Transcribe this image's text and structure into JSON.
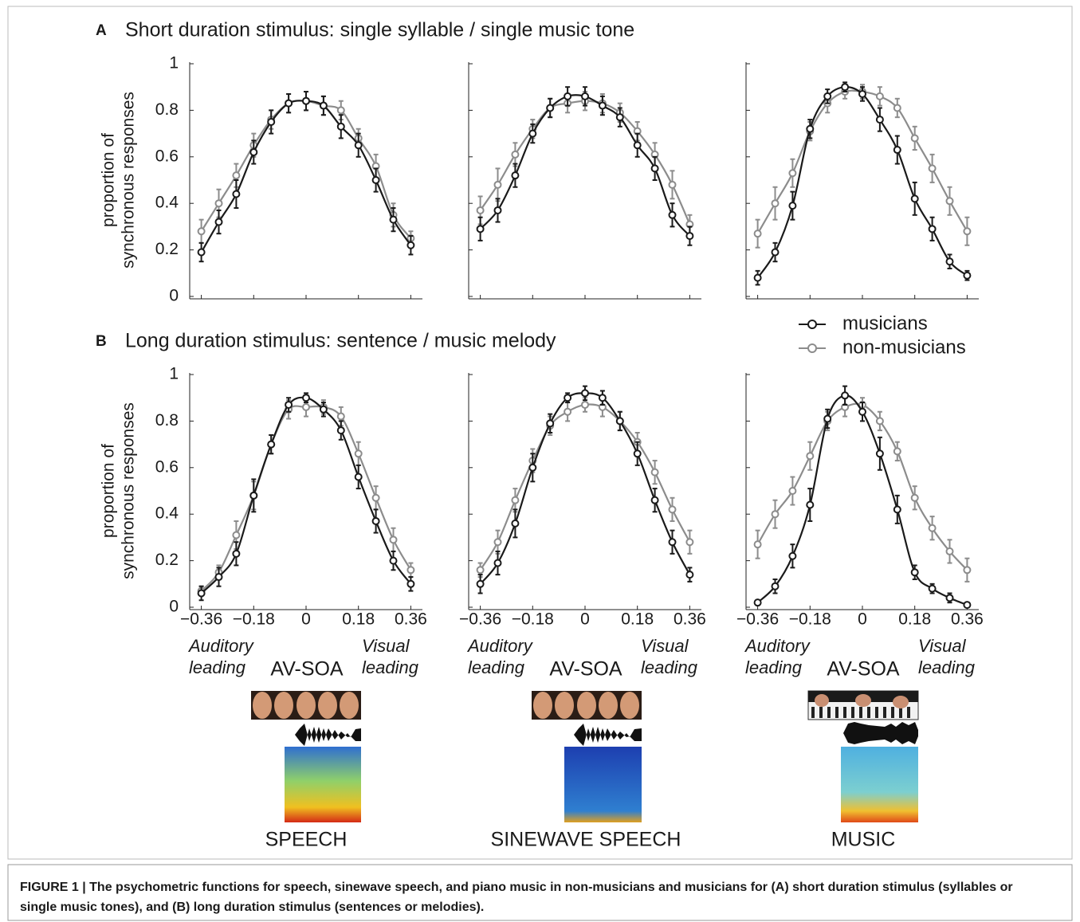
{
  "panels": [
    {
      "letter": "A",
      "title": "Short duration stimulus: single syllable / single music tone"
    },
    {
      "letter": "B",
      "title": "Long duration stimulus: sentence / music melody"
    }
  ],
  "chart_data": [
    {
      "type": "line",
      "ylabel": "proportion of synchronous responses",
      "x": [
        -0.36,
        -0.3,
        -0.24,
        -0.18,
        -0.12,
        -0.06,
        0,
        0.06,
        0.12,
        0.18,
        0.24,
        0.3,
        0.36
      ],
      "xlim": [
        -0.4,
        0.4
      ],
      "ylim": [
        0,
        1
      ],
      "yticks": [
        0,
        0.2,
        0.4,
        0.6,
        0.8,
        1
      ],
      "series": [
        {
          "color": "#8c8c8c",
          "values": [
            0.28,
            0.4,
            0.52,
            0.65,
            0.76,
            0.83,
            0.84,
            0.82,
            0.8,
            0.68,
            0.56,
            0.35,
            0.25
          ],
          "errors": [
            0.05,
            0.06,
            0.05,
            0.05,
            0.04,
            0.04,
            0.04,
            0.04,
            0.04,
            0.04,
            0.05,
            0.05,
            0.03
          ]
        },
        {
          "color": "#1a1a1a",
          "values": [
            0.19,
            0.32,
            0.44,
            0.62,
            0.75,
            0.83,
            0.84,
            0.82,
            0.73,
            0.65,
            0.5,
            0.33,
            0.22
          ],
          "errors": [
            0.04,
            0.05,
            0.06,
            0.05,
            0.05,
            0.04,
            0.04,
            0.04,
            0.05,
            0.05,
            0.05,
            0.05,
            0.04
          ]
        }
      ]
    },
    {
      "type": "line",
      "x": [
        -0.36,
        -0.3,
        -0.24,
        -0.18,
        -0.12,
        -0.06,
        0,
        0.06,
        0.12,
        0.18,
        0.24,
        0.3,
        0.36
      ],
      "xlim": [
        -0.4,
        0.4
      ],
      "ylim": [
        0,
        1
      ],
      "series": [
        {
          "color": "#8c8c8c",
          "values": [
            0.37,
            0.48,
            0.61,
            0.72,
            0.81,
            0.83,
            0.84,
            0.83,
            0.79,
            0.71,
            0.61,
            0.48,
            0.31
          ],
          "errors": [
            0.06,
            0.07,
            0.05,
            0.04,
            0.04,
            0.04,
            0.04,
            0.04,
            0.04,
            0.04,
            0.05,
            0.06,
            0.04
          ]
        },
        {
          "color": "#1a1a1a",
          "values": [
            0.29,
            0.37,
            0.52,
            0.7,
            0.81,
            0.86,
            0.86,
            0.82,
            0.77,
            0.65,
            0.55,
            0.35,
            0.26
          ],
          "errors": [
            0.05,
            0.05,
            0.05,
            0.04,
            0.04,
            0.04,
            0.04,
            0.04,
            0.04,
            0.05,
            0.05,
            0.05,
            0.04
          ]
        }
      ]
    },
    {
      "type": "line",
      "legend": "lower right",
      "x": [
        -0.36,
        -0.3,
        -0.24,
        -0.18,
        -0.12,
        -0.06,
        0,
        0.06,
        0.12,
        0.18,
        0.24,
        0.3,
        0.36
      ],
      "xlim": [
        -0.4,
        0.4
      ],
      "ylim": [
        0,
        1
      ],
      "series": [
        {
          "name": "non-musicians",
          "color": "#8c8c8c",
          "values": [
            0.27,
            0.4,
            0.53,
            0.71,
            0.83,
            0.88,
            0.88,
            0.86,
            0.81,
            0.68,
            0.55,
            0.41,
            0.28
          ],
          "errors": [
            0.06,
            0.07,
            0.06,
            0.04,
            0.04,
            0.03,
            0.03,
            0.04,
            0.04,
            0.05,
            0.06,
            0.06,
            0.06
          ]
        },
        {
          "name": "musicians",
          "color": "#1a1a1a",
          "values": [
            0.08,
            0.19,
            0.39,
            0.72,
            0.86,
            0.9,
            0.87,
            0.76,
            0.63,
            0.42,
            0.29,
            0.15,
            0.09
          ],
          "errors": [
            0.03,
            0.04,
            0.06,
            0.04,
            0.03,
            0.02,
            0.03,
            0.05,
            0.06,
            0.07,
            0.05,
            0.03,
            0.02
          ]
        }
      ]
    },
    {
      "type": "line",
      "ylabel": "proportion of synchronous responses",
      "xlabel": "AV-SOA",
      "annotations": [
        "Auditory leading",
        "Visual leading"
      ],
      "x": [
        -0.36,
        -0.3,
        -0.24,
        -0.18,
        -0.12,
        -0.06,
        0,
        0.06,
        0.12,
        0.18,
        0.24,
        0.3,
        0.36
      ],
      "xlim": [
        -0.4,
        0.4
      ],
      "ylim": [
        0,
        1
      ],
      "yticks": [
        0,
        0.2,
        0.4,
        0.6,
        0.8,
        1
      ],
      "xticks": [
        {
          "value": -0.36,
          "label": "−0.36"
        },
        {
          "value": -0.18,
          "label": "−0.18"
        },
        0,
        0.18,
        0.36
      ],
      "series": [
        {
          "color": "#8c8c8c",
          "values": [
            0.07,
            0.15,
            0.31,
            0.48,
            0.7,
            0.85,
            0.86,
            0.86,
            0.82,
            0.66,
            0.47,
            0.29,
            0.16
          ],
          "errors": [
            0.02,
            0.03,
            0.06,
            0.06,
            0.04,
            0.04,
            0.04,
            0.03,
            0.04,
            0.05,
            0.05,
            0.05,
            0.03
          ]
        },
        {
          "color": "#1a1a1a",
          "values": [
            0.06,
            0.13,
            0.23,
            0.48,
            0.7,
            0.87,
            0.9,
            0.85,
            0.76,
            0.56,
            0.37,
            0.2,
            0.1
          ],
          "errors": [
            0.03,
            0.04,
            0.05,
            0.07,
            0.04,
            0.03,
            0.02,
            0.03,
            0.04,
            0.05,
            0.05,
            0.04,
            0.03
          ]
        }
      ]
    },
    {
      "type": "line",
      "xlabel": "AV-SOA",
      "annotations": [
        "Auditory leading",
        "Visual leading"
      ],
      "x": [
        -0.36,
        -0.3,
        -0.24,
        -0.18,
        -0.12,
        -0.06,
        0,
        0.06,
        0.12,
        0.18,
        0.24,
        0.3,
        0.36
      ],
      "xlim": [
        -0.4,
        0.4
      ],
      "ylim": [
        0,
        1
      ],
      "xticks": [
        {
          "value": -0.36,
          "label": "−0.36"
        },
        {
          "value": -0.18,
          "label": "−0.18"
        },
        0,
        0.18,
        0.36
      ],
      "series": [
        {
          "color": "#8c8c8c",
          "values": [
            0.16,
            0.28,
            0.46,
            0.63,
            0.78,
            0.84,
            0.87,
            0.86,
            0.8,
            0.71,
            0.58,
            0.42,
            0.28
          ],
          "errors": [
            0.03,
            0.05,
            0.05,
            0.05,
            0.04,
            0.04,
            0.03,
            0.04,
            0.04,
            0.04,
            0.05,
            0.05,
            0.05
          ]
        },
        {
          "color": "#1a1a1a",
          "values": [
            0.1,
            0.19,
            0.36,
            0.6,
            0.79,
            0.9,
            0.92,
            0.9,
            0.8,
            0.66,
            0.46,
            0.28,
            0.14
          ],
          "errors": [
            0.04,
            0.05,
            0.06,
            0.06,
            0.04,
            0.02,
            0.03,
            0.03,
            0.04,
            0.05,
            0.05,
            0.05,
            0.03
          ]
        }
      ]
    },
    {
      "type": "line",
      "xlabel": "AV-SOA",
      "annotations": [
        "Auditory leading",
        "Visual leading"
      ],
      "x": [
        -0.36,
        -0.3,
        -0.24,
        -0.18,
        -0.12,
        -0.06,
        0,
        0.06,
        0.12,
        0.18,
        0.24,
        0.3,
        0.36
      ],
      "xlim": [
        -0.4,
        0.4
      ],
      "ylim": [
        0,
        1
      ],
      "xticks": [
        {
          "value": -0.36,
          "label": "−0.36"
        },
        {
          "value": -0.18,
          "label": "−0.18"
        },
        0,
        0.18,
        0.36
      ],
      "series": [
        {
          "color": "#8c8c8c",
          "values": [
            0.27,
            0.4,
            0.5,
            0.65,
            0.8,
            0.86,
            0.87,
            0.8,
            0.67,
            0.47,
            0.34,
            0.24,
            0.16
          ],
          "errors": [
            0.06,
            0.06,
            0.06,
            0.06,
            0.04,
            0.04,
            0.03,
            0.04,
            0.04,
            0.05,
            0.05,
            0.05,
            0.05
          ]
        },
        {
          "color": "#1a1a1a",
          "values": [
            0.02,
            0.09,
            0.22,
            0.44,
            0.81,
            0.91,
            0.84,
            0.66,
            0.42,
            0.15,
            0.08,
            0.04,
            0.01
          ],
          "errors": [
            0.01,
            0.03,
            0.05,
            0.07,
            0.04,
            0.04,
            0.04,
            0.07,
            0.06,
            0.03,
            0.02,
            0.02,
            0.01
          ]
        }
      ]
    }
  ],
  "stimuli": [
    "SPEECH",
    "SINEWAVE SPEECH",
    "MUSIC"
  ],
  "caption": "FIGURE 1 | The psychometric functions for speech, sinewave speech, and piano music in non-musicians and musicians for (A) short duration stimulus (syllables or single music tones), and (B) long duration stimulus (sentences or melodies)."
}
